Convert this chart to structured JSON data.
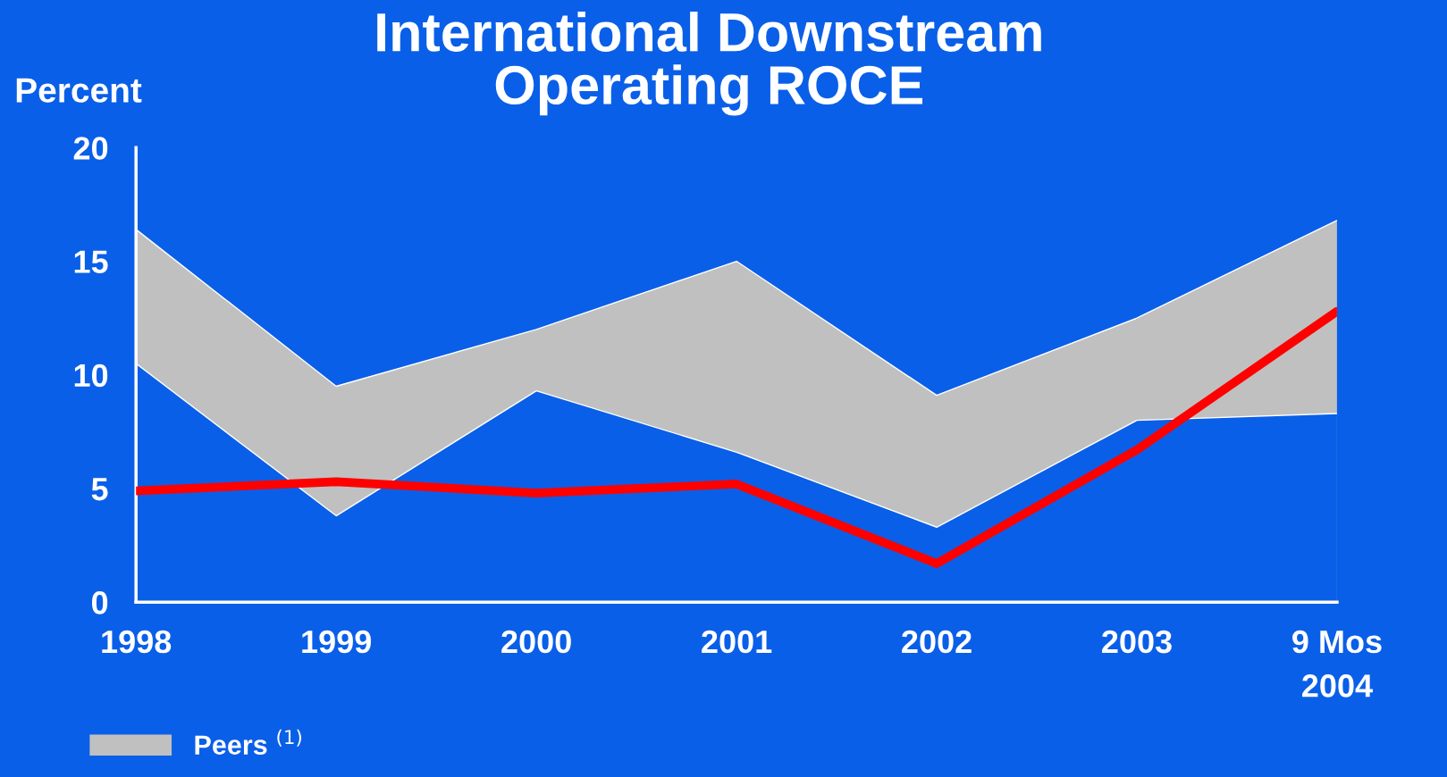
{
  "chart_data": {
    "type": "line",
    "title": "International Downstream\nOperating ROCE",
    "ylabel": "Percent",
    "categories": [
      "1998",
      "1999",
      "2000",
      "2001",
      "2002",
      "2003",
      "9 Mos\n2004"
    ],
    "series": [
      {
        "name": "Peers $^{(1)}$",
        "type": "area",
        "color": "#c0c0c0",
        "values": [
          16.4,
          9.5,
          12.0,
          15.0,
          9.1,
          12.5,
          16.8
        ]
      },
      {
        "type": "area",
        "color": "#0a5fe8",
        "values": [
          10.5,
          3.8,
          9.3,
          6.6,
          3.3,
          8.0,
          8.3
        ]
      },
      {
        "type": "line",
        "color": "#ff0000",
        "values": [
          4.9,
          5.3,
          4.8,
          5.2,
          1.7,
          6.7,
          12.8
        ]
      }
    ],
    "ylim": [
      0,
      20
    ],
    "yticks": [
      0,
      5,
      10,
      15,
      20
    ],
    "grid": false,
    "legend": "bottom left",
    "marker": "none",
    "line_style": "solid"
  }
}
